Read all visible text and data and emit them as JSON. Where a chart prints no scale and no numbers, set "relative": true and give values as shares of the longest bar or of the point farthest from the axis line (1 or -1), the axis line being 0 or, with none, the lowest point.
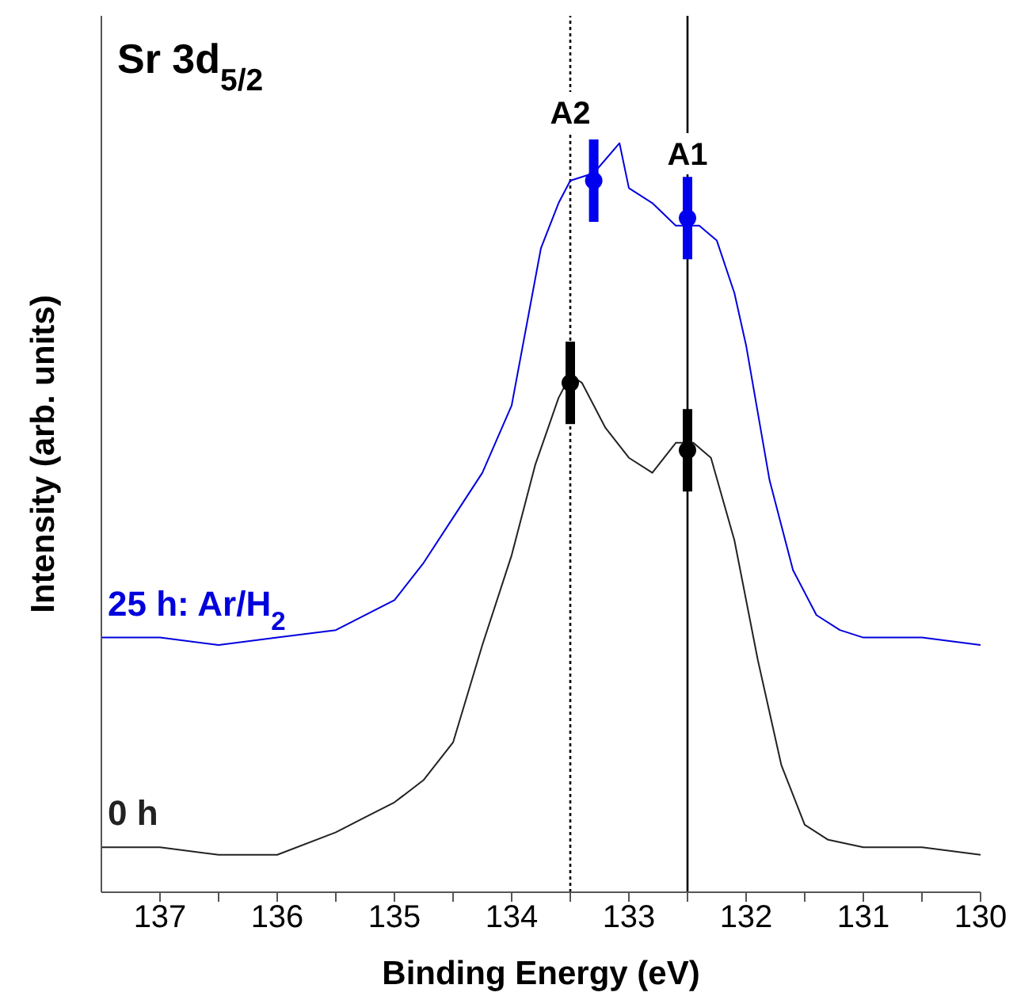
{
  "chart_data": {
    "type": "line",
    "title": "Sr 3d$_{5/2}$",
    "xlabel": "Binding Energy (eV)",
    "ylabel": "Intensity (arb. units)",
    "relative": true,
    "xlim": [
      137.5,
      130
    ],
    "xticks": [
      137,
      {
        "value": 136.5,
        "label": null
      },
      136,
      {
        "value": 135.5,
        "label": null
      },
      135,
      {
        "value": 134.5,
        "label": null
      },
      134,
      {
        "value": 133.5,
        "label": null
      },
      133,
      {
        "value": 132.5,
        "label": null
      },
      132,
      {
        "value": 131.5,
        "label": null
      },
      131,
      {
        "value": 130.5,
        "label": null
      },
      130
    ],
    "series": [
      {
        "name": "25 h: Ar/H$_{2}$",
        "color": "#0000dd",
        "x": [
          137.5,
          137,
          136.5,
          136,
          135.5,
          135,
          134.75,
          134.5,
          134.25,
          134,
          133.75,
          133.6,
          133.5,
          133.3,
          133.08,
          133,
          132.8,
          132.6,
          132.4,
          132.25,
          132.1,
          132,
          131.8,
          131.6,
          131.4,
          131.2,
          131,
          130.5,
          130
        ],
        "values": [
          0.34,
          0.34,
          0.33,
          0.34,
          0.35,
          0.39,
          0.44,
          0.5,
          0.56,
          0.65,
          0.86,
          0.92,
          0.95,
          0.96,
          1,
          0.94,
          0.92,
          0.89,
          0.89,
          0.87,
          0.8,
          0.73,
          0.55,
          0.43,
          0.37,
          0.35,
          0.34,
          0.34,
          0.33
        ]
      },
      {
        "name": "0 h",
        "color": "#222222",
        "x": [
          137.5,
          137,
          136.5,
          136,
          135.5,
          135.25,
          135,
          134.75,
          134.5,
          134.25,
          134,
          133.8,
          133.6,
          133.5,
          133.4,
          133.2,
          133,
          132.8,
          132.6,
          132.45,
          132.3,
          132.1,
          131.9,
          131.7,
          131.5,
          131.3,
          131,
          130.5,
          130
        ],
        "values": [
          0.06,
          0.06,
          0.05,
          0.05,
          0.08,
          0.1,
          0.12,
          0.15,
          0.2,
          0.33,
          0.45,
          0.57,
          0.66,
          0.69,
          0.68,
          0.62,
          0.58,
          0.56,
          0.6,
          0.6,
          0.58,
          0.47,
          0.31,
          0.17,
          0.09,
          0.07,
          0.06,
          0.06,
          0.05
        ]
      },
      {
        "type": "scatter",
        "color": "#0000ee",
        "marker": "circle",
        "x": [
          133.3,
          132.5
        ],
        "values": [
          0.95,
          0.9
        ]
      },
      {
        "type": "scatter",
        "color": "#000000",
        "marker": "circle",
        "x": [
          133.5,
          132.5
        ],
        "values": [
          0.68,
          0.59
        ]
      }
    ],
    "ref_lines": [
      {
        "axis": "x",
        "value": 133.5,
        "label": "A2",
        "line_style": "dotted",
        "color": "#000000"
      },
      {
        "axis": "x",
        "value": 132.5,
        "label": "A1",
        "line_style": "solid",
        "color": "#000000"
      }
    ]
  }
}
